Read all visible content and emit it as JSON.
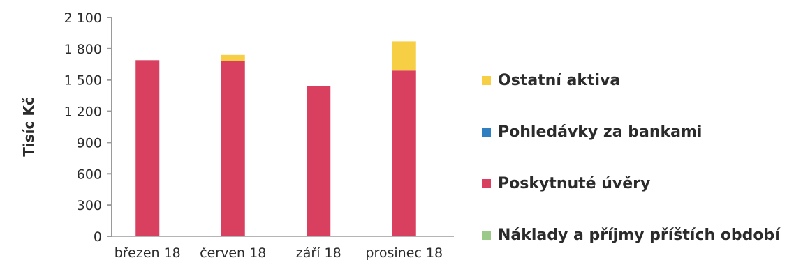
{
  "chart_data": {
    "type": "bar",
    "stacked": true,
    "categories": [
      "březen 18",
      "červen 18",
      "září 18",
      "prosinec 18"
    ],
    "series": [
      {
        "name": "Ostatní aktiva",
        "color": "#f6cf45",
        "values": [
          0,
          60,
          0,
          280
        ]
      },
      {
        "name": "Pohledávky za bankami",
        "color": "#2f7fc1",
        "values": [
          0,
          0,
          0,
          0
        ]
      },
      {
        "name": "Poskytnuté úvěry",
        "color": "#d93f5f",
        "values": [
          1690,
          1680,
          1440,
          1590
        ]
      },
      {
        "name": "Náklady a příjmy příštích období",
        "color": "#9ac98a",
        "values": [
          0,
          0,
          0,
          0
        ]
      }
    ],
    "ylabel": "Tisíc Kč",
    "ylim": [
      0,
      2100
    ],
    "yticks": [
      "0",
      "300",
      "600",
      "900",
      "1 200",
      "1 500",
      "1 800",
      "2 100"
    ],
    "ytick_values": [
      0,
      300,
      600,
      900,
      1200,
      1500,
      1800,
      2100
    ],
    "legend_position": "right"
  }
}
